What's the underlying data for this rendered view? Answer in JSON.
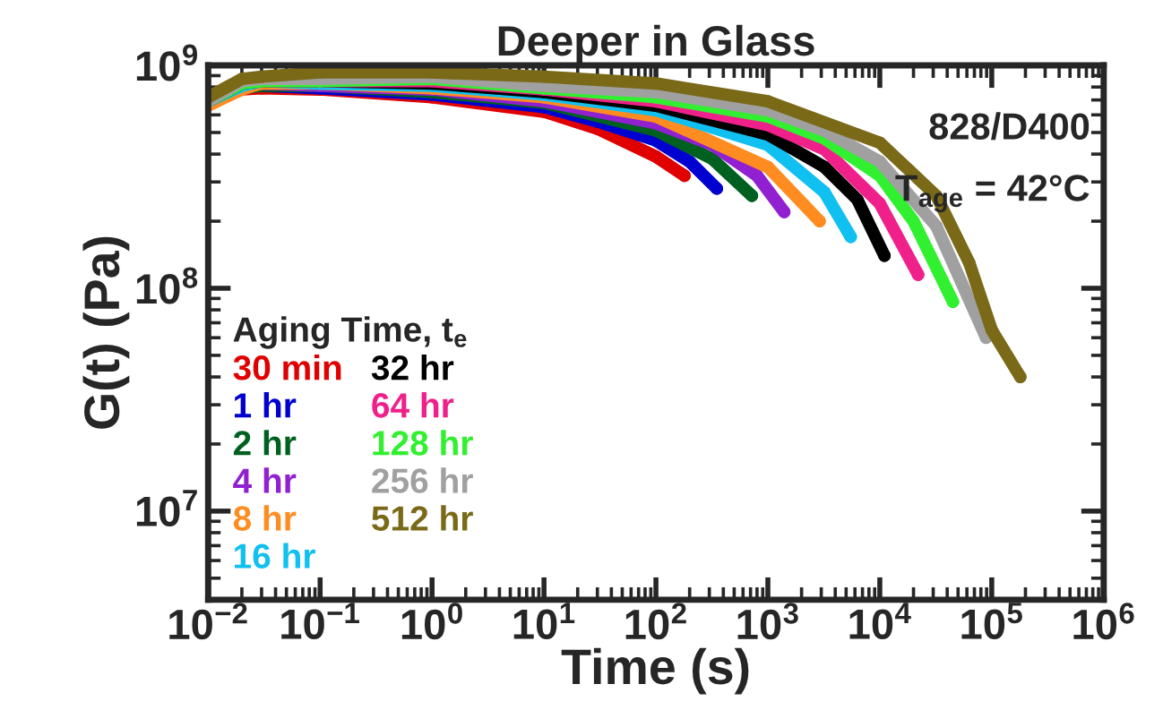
{
  "chart_data": {
    "type": "line",
    "title": "Deeper in Glass",
    "xlabel": "Time (s)",
    "ylabel": "G(t) (Pa)",
    "legend_title": "Aging Time, t$_{e}$",
    "log": "xy",
    "xlim": [
      0.01,
      1000000
    ],
    "ylim": [
      4000000,
      1000000000
    ],
    "xticks": [
      {
        "value": 0.01,
        "label": "10$^{−2}$"
      },
      {
        "value": 0.1,
        "label": "10$^{−1}$"
      },
      {
        "value": 1,
        "label": "10$^{0}$"
      },
      {
        "value": 10,
        "label": "10$^{1}$"
      },
      {
        "value": 100,
        "label": "10$^{2}$"
      },
      {
        "value": 1000,
        "label": "10$^{3}$"
      },
      {
        "value": 10000,
        "label": "10$^{4}$"
      },
      {
        "value": 100000,
        "label": "10$^{5}$"
      },
      {
        "value": 1000000,
        "label": "10$^{6}$"
      }
    ],
    "yticks": [
      {
        "value": 10000000,
        "label": "10$^{7}$"
      },
      {
        "value": 100000000,
        "label": "10$^{8}$"
      },
      {
        "value": 1000000000,
        "label": "10$^{9}$"
      }
    ],
    "grid": false,
    "legend": "bottom left",
    "marker": "circle",
    "line_style": "solid",
    "annotations": [
      "828/D400",
      "T$_{age}$ = 42°C"
    ],
    "series": [
      {
        "name": "30 min",
        "color": "#e00000",
        "x": [
          0.01,
          0.02,
          0.03,
          0.1,
          1,
          10,
          30,
          100,
          180
        ],
        "values": [
          680000000.0,
          780000000.0,
          790000000.0,
          780000000.0,
          720000000.0,
          620000000.0,
          520000000.0,
          390000000.0,
          320000000.0
        ]
      },
      {
        "name": "1 hr",
        "color": "#0000d0",
        "x": [
          0.03,
          0.1,
          1,
          10,
          30,
          100,
          200,
          350
        ],
        "values": [
          810000000.0,
          790000000.0,
          740000000.0,
          650000000.0,
          560000000.0,
          460000000.0,
          370000000.0,
          280000000.0
        ]
      },
      {
        "name": "2 hr",
        "color": "#006020",
        "x": [
          0.01,
          0.02,
          0.03,
          0.1,
          1,
          10,
          100,
          320,
          720
        ],
        "values": [
          680000000.0,
          790000000.0,
          810000000.0,
          810000000.0,
          760000000.0,
          680000000.0,
          510000000.0,
          380000000.0,
          260000000.0
        ]
      },
      {
        "name": "4 hr",
        "color": "#9020d0",
        "x": [
          0.01,
          0.02,
          0.03,
          0.1,
          1,
          10,
          100,
          320,
          800,
          1400
        ],
        "values": [
          680000000.0,
          790000000.0,
          830000000.0,
          810000000.0,
          780000000.0,
          690000000.0,
          550000000.0,
          440000000.0,
          320000000.0,
          220000000.0
        ]
      },
      {
        "name": "8 hr",
        "color": "#ff8c20",
        "x": [
          0.01,
          0.02,
          0.03,
          0.1,
          1,
          10,
          100,
          1000,
          2900
        ],
        "values": [
          660000000.0,
          780000000.0,
          830000000.0,
          830000000.0,
          790000000.0,
          720000000.0,
          590000000.0,
          350000000.0,
          200000000.0
        ]
      },
      {
        "name": "16 hr",
        "color": "#10c0f0",
        "x": [
          0.01,
          0.02,
          0.03,
          0.1,
          1,
          10,
          100,
          1000,
          3200,
          5500
        ],
        "values": [
          690000000.0,
          810000000.0,
          850000000.0,
          830000000.0,
          810000000.0,
          740000000.0,
          630000000.0,
          440000000.0,
          270000000.0,
          170000000.0
        ]
      },
      {
        "name": "32 hr",
        "color": "#000000",
        "x": [
          0.01,
          0.02,
          0.03,
          0.1,
          1,
          10,
          100,
          1000,
          3200,
          6300,
          11000
        ],
        "values": [
          690000000.0,
          830000000.0,
          850000000.0,
          850000000.0,
          830000000.0,
          760000000.0,
          660000000.0,
          490000000.0,
          350000000.0,
          250000000.0,
          140000000.0
        ]
      },
      {
        "name": "64 hr",
        "color": "#f0208a",
        "x": [
          0.03,
          0.1,
          1,
          10,
          100,
          1000,
          3200,
          10000,
          22000
        ],
        "values": [
          850000000.0,
          850000000.0,
          850000000.0,
          780000000.0,
          690000000.0,
          540000000.0,
          420000000.0,
          240000000.0,
          115000000.0
        ]
      },
      {
        "name": "128 hr",
        "color": "#30f030",
        "x": [
          0.01,
          0.02,
          0.03,
          0.1,
          1,
          10,
          100,
          1000,
          3200,
          10000,
          20000,
          45000
        ],
        "values": [
          690000000.0,
          830000000.0,
          850000000.0,
          850000000.0,
          870000000.0,
          790000000.0,
          720000000.0,
          590000000.0,
          470000000.0,
          320000000.0,
          200000000.0,
          87000000.0
        ]
      },
      {
        "name": "256 hr",
        "color": "#a0a0a0",
        "x": [
          0.01,
          0.02,
          0.03,
          0.1,
          1,
          10,
          100,
          1000,
          3200,
          10000,
          32000,
          89000
        ],
        "values": [
          690000000.0,
          850000000.0,
          870000000.0,
          870000000.0,
          890000000.0,
          810000000.0,
          760000000.0,
          630000000.0,
          510000000.0,
          370000000.0,
          190000000.0,
          60000000.0
        ]
      },
      {
        "name": "512 hr",
        "color": "#7a6a18",
        "x": [
          0.01,
          0.02,
          0.03,
          0.1,
          1,
          10,
          100,
          1000,
          10000,
          32000,
          63000,
          100000,
          180000
        ],
        "values": [
          720000000.0,
          870000000.0,
          890000000.0,
          930000000.0,
          930000000.0,
          890000000.0,
          830000000.0,
          690000000.0,
          450000000.0,
          260000000.0,
          130000000.0,
          65000000.0,
          40000000.0
        ]
      }
    ]
  }
}
